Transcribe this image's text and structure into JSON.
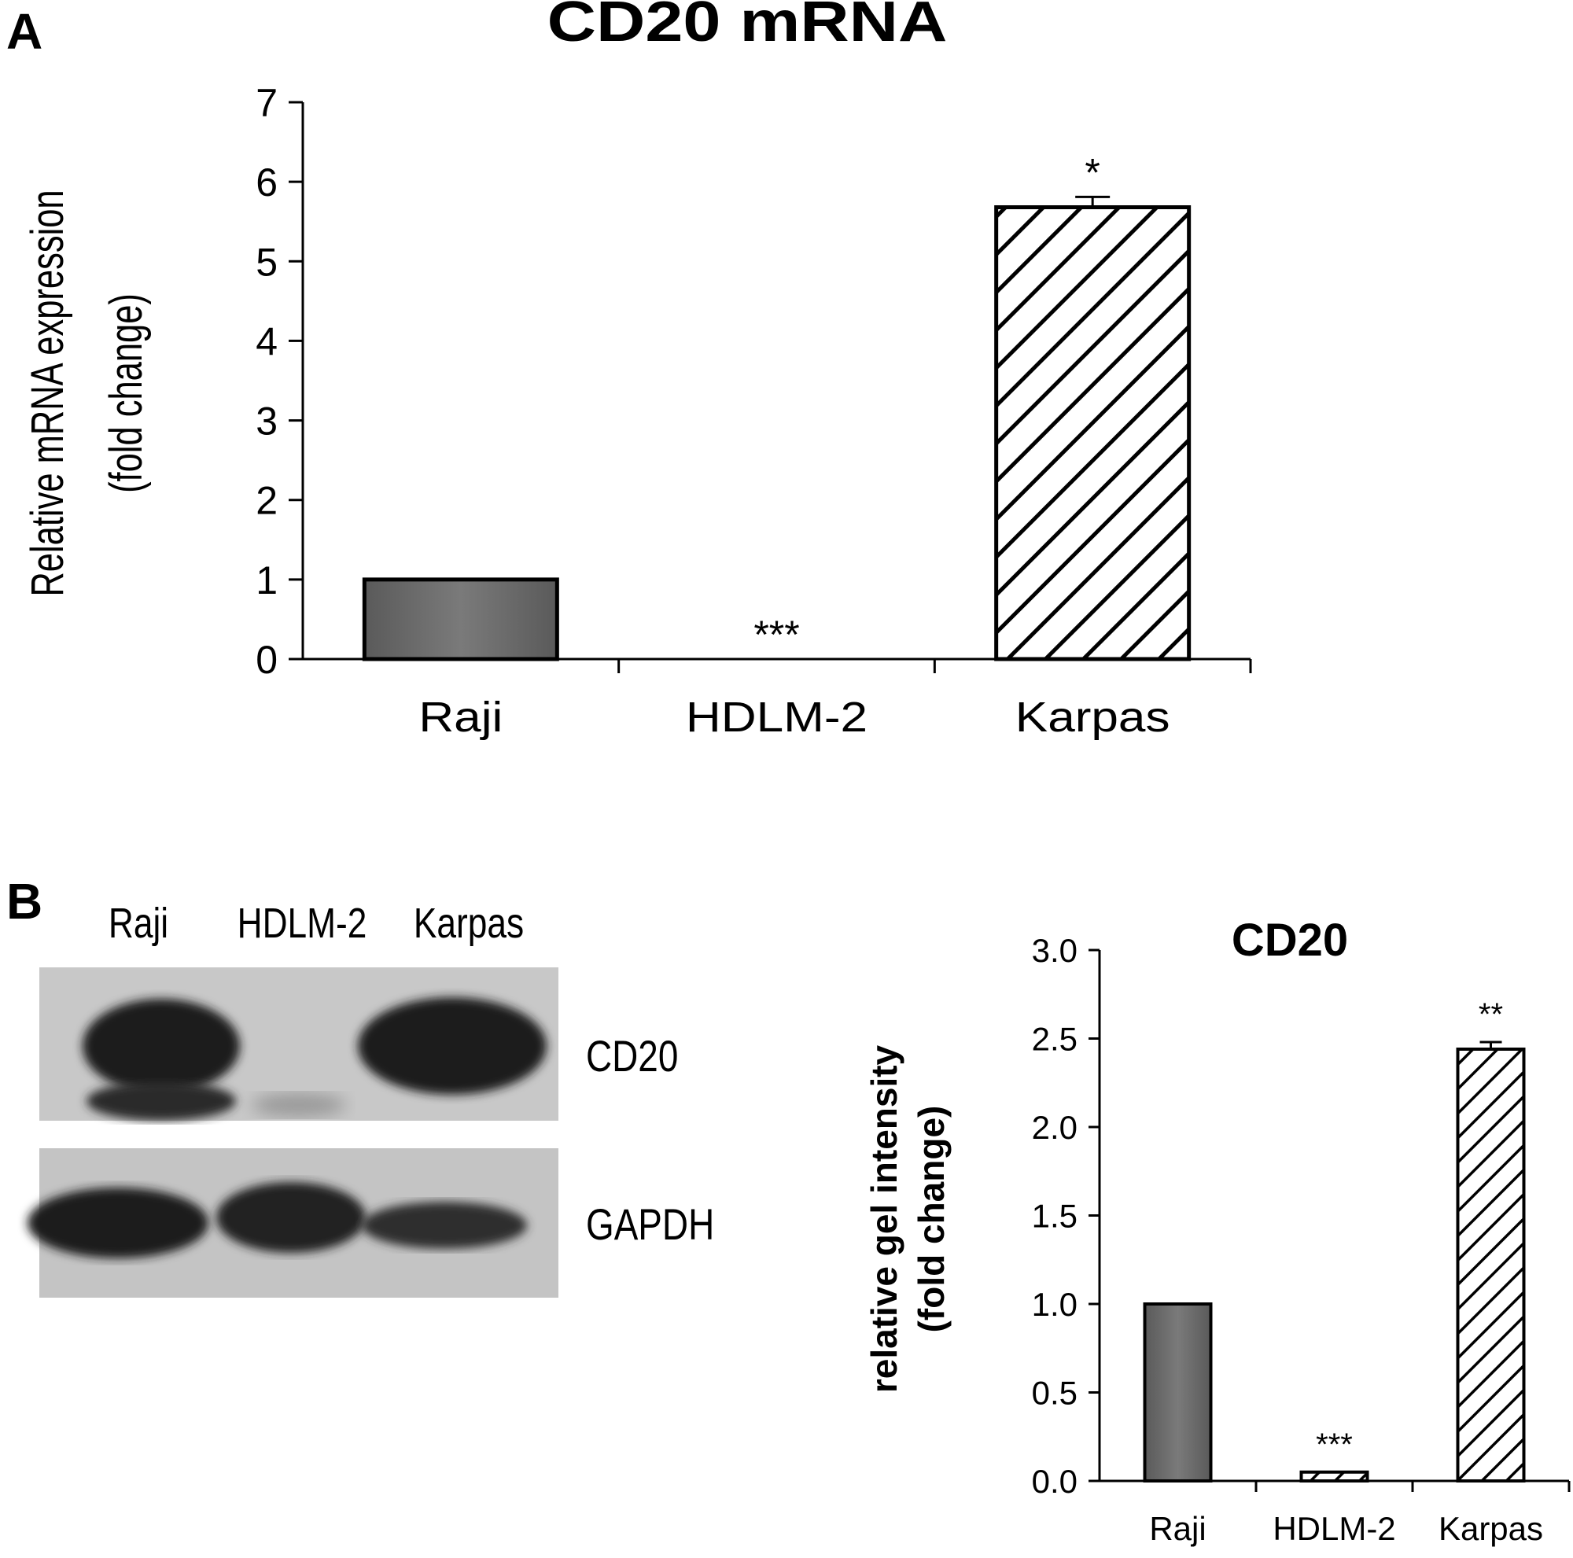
{
  "panels": {
    "a_label": "A",
    "b_label": "B"
  },
  "colors": {
    "solid_bar": "#6e6e6e",
    "axis": "#000000",
    "hatch": "#000000"
  },
  "blot": {
    "lanes": [
      "Raji",
      "HDLM-2",
      "Karpas"
    ],
    "labels": [
      "CD20",
      "GAPDH"
    ]
  },
  "chart_data": [
    {
      "type": "bar",
      "title": "CD20 mRNA",
      "ylabel": "Relative mRNA expression\n(fold change)",
      "xlabel": "",
      "categories": [
        "Raji",
        "HDLM-2",
        "Karpas"
      ],
      "values": [
        1.0,
        0.0,
        5.68
      ],
      "errors": [
        0,
        0,
        0.13
      ],
      "annotations": [
        "",
        "***",
        "*"
      ],
      "fills": [
        "solid",
        "none",
        "hatch"
      ],
      "ylim": [
        0,
        7
      ],
      "yticks": [
        "0",
        "1",
        "2",
        "3",
        "4",
        "5",
        "6",
        "7"
      ],
      "grid": false
    },
    {
      "type": "bar",
      "title": "CD20",
      "ylabel": "relative gel intensity\n(fold change)",
      "xlabel": "",
      "categories": [
        "Raji",
        "HDLM-2",
        "Karpas"
      ],
      "values": [
        1.0,
        0.05,
        2.44
      ],
      "errors": [
        0,
        0,
        0.04
      ],
      "annotations": [
        "",
        "***",
        "**"
      ],
      "fills": [
        "solid",
        "hatch",
        "hatch"
      ],
      "ylim": [
        0,
        3.0
      ],
      "yticks": [
        "0.0",
        "0.5",
        "1.0",
        "1.5",
        "2.0",
        "2.5",
        "3.0"
      ],
      "grid": false
    }
  ]
}
